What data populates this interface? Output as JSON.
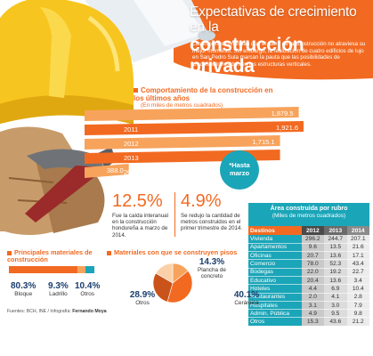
{
  "header": {
    "title_line1": "Expectativas de crecimiento en la",
    "title_line2": "construcción privada",
    "intro": "Los informes confirman que el rubro de la construcción no atraviesa su mejor momento. Sin embargo, la realización de cuatro edificios de lujo en San Pedro Sula marcan la pauta que las posibilidades de crecimiento residen en las estructuras verticales."
  },
  "colors": {
    "orange": "#f26a21",
    "teal": "#1ba5b8",
    "navy": "#1a3e6e",
    "helmet": "#f7c51f"
  },
  "chart_data": [
    {
      "type": "bar",
      "title": "Comportamiento de la construcción en los últimos años",
      "subtitle": "(En miles de metros cuadrados)",
      "categories": [
        "",
        "2011",
        "2012",
        "2013",
        "2014*"
      ],
      "values": [
        1879.5,
        1921.6,
        1715.1,
        1715.1,
        388.0
      ],
      "value_labels": [
        "1,879.5",
        "1,921.6",
        "1,715.1",
        "",
        "388.0"
      ],
      "note": "*Hasta marzo"
    },
    {
      "type": "pie",
      "title": "Materiales con que se construyen pisos",
      "slices": [
        {
          "label": "Plancha de concreto",
          "value": 14.3,
          "display": "14.3%",
          "color": "#f7a35c"
        },
        {
          "label": "Cerámica",
          "value": 40.1,
          "display": "40.1%",
          "color": "#f26a21"
        },
        {
          "label": "Otros",
          "value": 28.9,
          "display": "28.9%",
          "color": "#c9531a"
        },
        {
          "label": "",
          "value": 16.7,
          "display": "",
          "color": "#fbd0a8"
        }
      ]
    },
    {
      "type": "bar",
      "title": "Principales materiales de construcción",
      "categories": [
        "Bloque",
        "Ladrillo",
        "Otros"
      ],
      "values": [
        80.3,
        9.3,
        10.4
      ],
      "value_labels": [
        "80.3%",
        "9.3%",
        "10.4%"
      ]
    },
    {
      "type": "table",
      "title": "Área construida por rubro",
      "subtitle": "(Miles de metros cuadrados)",
      "columns": [
        "Destinos",
        "2012",
        "2013",
        "2014"
      ],
      "rows": [
        [
          "Vivienda",
          "296.2",
          "244.7",
          "207.1"
        ],
        [
          "Apartamentos",
          "9.6",
          "13.5",
          "21.6"
        ],
        [
          "Oficinas",
          "20.7",
          "13.6",
          "17.1"
        ],
        [
          "Comercio",
          "78.0",
          "52.3",
          "43.4"
        ],
        [
          "Bodegas",
          "22.0",
          "19.2",
          "22.7"
        ],
        [
          "Educativo",
          "20.4",
          "13.6",
          "3.4"
        ],
        [
          "Hoteles",
          "4.4",
          "6.9",
          "10.4"
        ],
        [
          "Restaurantes",
          "2.0",
          "4.1",
          "2.8"
        ],
        [
          "Hospitales",
          "3.1",
          "3.0",
          "7.9"
        ],
        [
          "Admin. Pública",
          "4.9",
          "9.5",
          "9.8"
        ],
        [
          "Otros",
          "15.3",
          "43.6",
          "21.2"
        ]
      ]
    }
  ],
  "stats": [
    {
      "value": "12.5%",
      "text": "Fue la caída interanual en la construcción hondureña a marzo de 2014."
    },
    {
      "value": "4.9%",
      "text": "Se redujo la cantidad de metros construidos en el primer trimestre de 2014."
    }
  ],
  "source": {
    "prefix": "Fuentes: BCH, INE / Infografía:",
    "author": "Fernando Moya"
  }
}
